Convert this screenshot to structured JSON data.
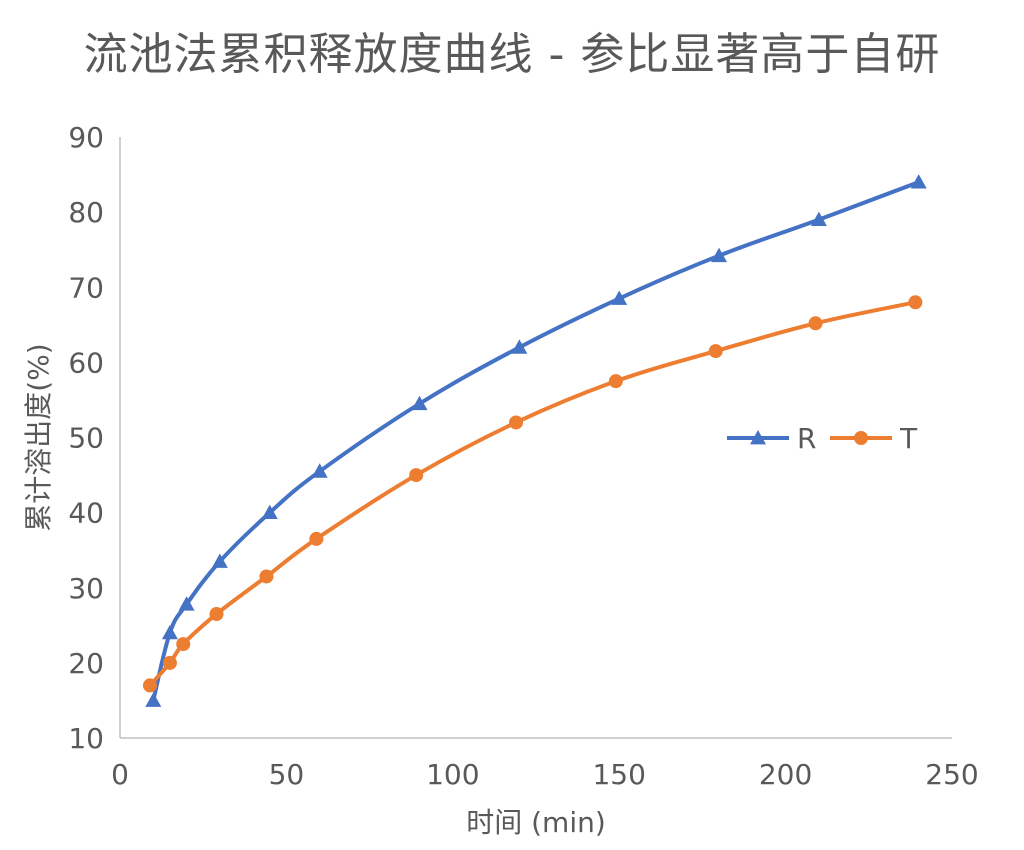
{
  "chart_data": {
    "type": "scatter",
    "title": "流池法累积释放度曲线 - 参比显著高于自研",
    "xlabel": "时间 (min)",
    "ylabel": "累计溶出度(%)",
    "xlim": [
      0,
      250
    ],
    "ylim": [
      10,
      90
    ],
    "xticks": [
      0,
      50,
      100,
      150,
      200,
      250
    ],
    "yticks": [
      10,
      20,
      30,
      40,
      50,
      60,
      70,
      80,
      90
    ],
    "grid": false,
    "legend_position": "right",
    "series": [
      {
        "name": "R",
        "color": "#4472C4",
        "marker": "triangle",
        "x": [
          10,
          15,
          20,
          30,
          45,
          60,
          90,
          120,
          150,
          180,
          210,
          240
        ],
        "y": [
          15,
          24,
          27.8,
          33.5,
          40,
          45.5,
          54.5,
          62,
          68.5,
          74.2,
          79,
          84
        ]
      },
      {
        "name": "T",
        "color": "#ED7D31",
        "marker": "circle",
        "x": [
          9,
          15,
          19,
          29,
          44,
          59,
          89,
          119,
          149,
          179,
          209,
          239
        ],
        "y": [
          17,
          20,
          22.5,
          26.5,
          31.5,
          36.5,
          45,
          52,
          57.5,
          61.5,
          65.2,
          68
        ]
      }
    ]
  }
}
